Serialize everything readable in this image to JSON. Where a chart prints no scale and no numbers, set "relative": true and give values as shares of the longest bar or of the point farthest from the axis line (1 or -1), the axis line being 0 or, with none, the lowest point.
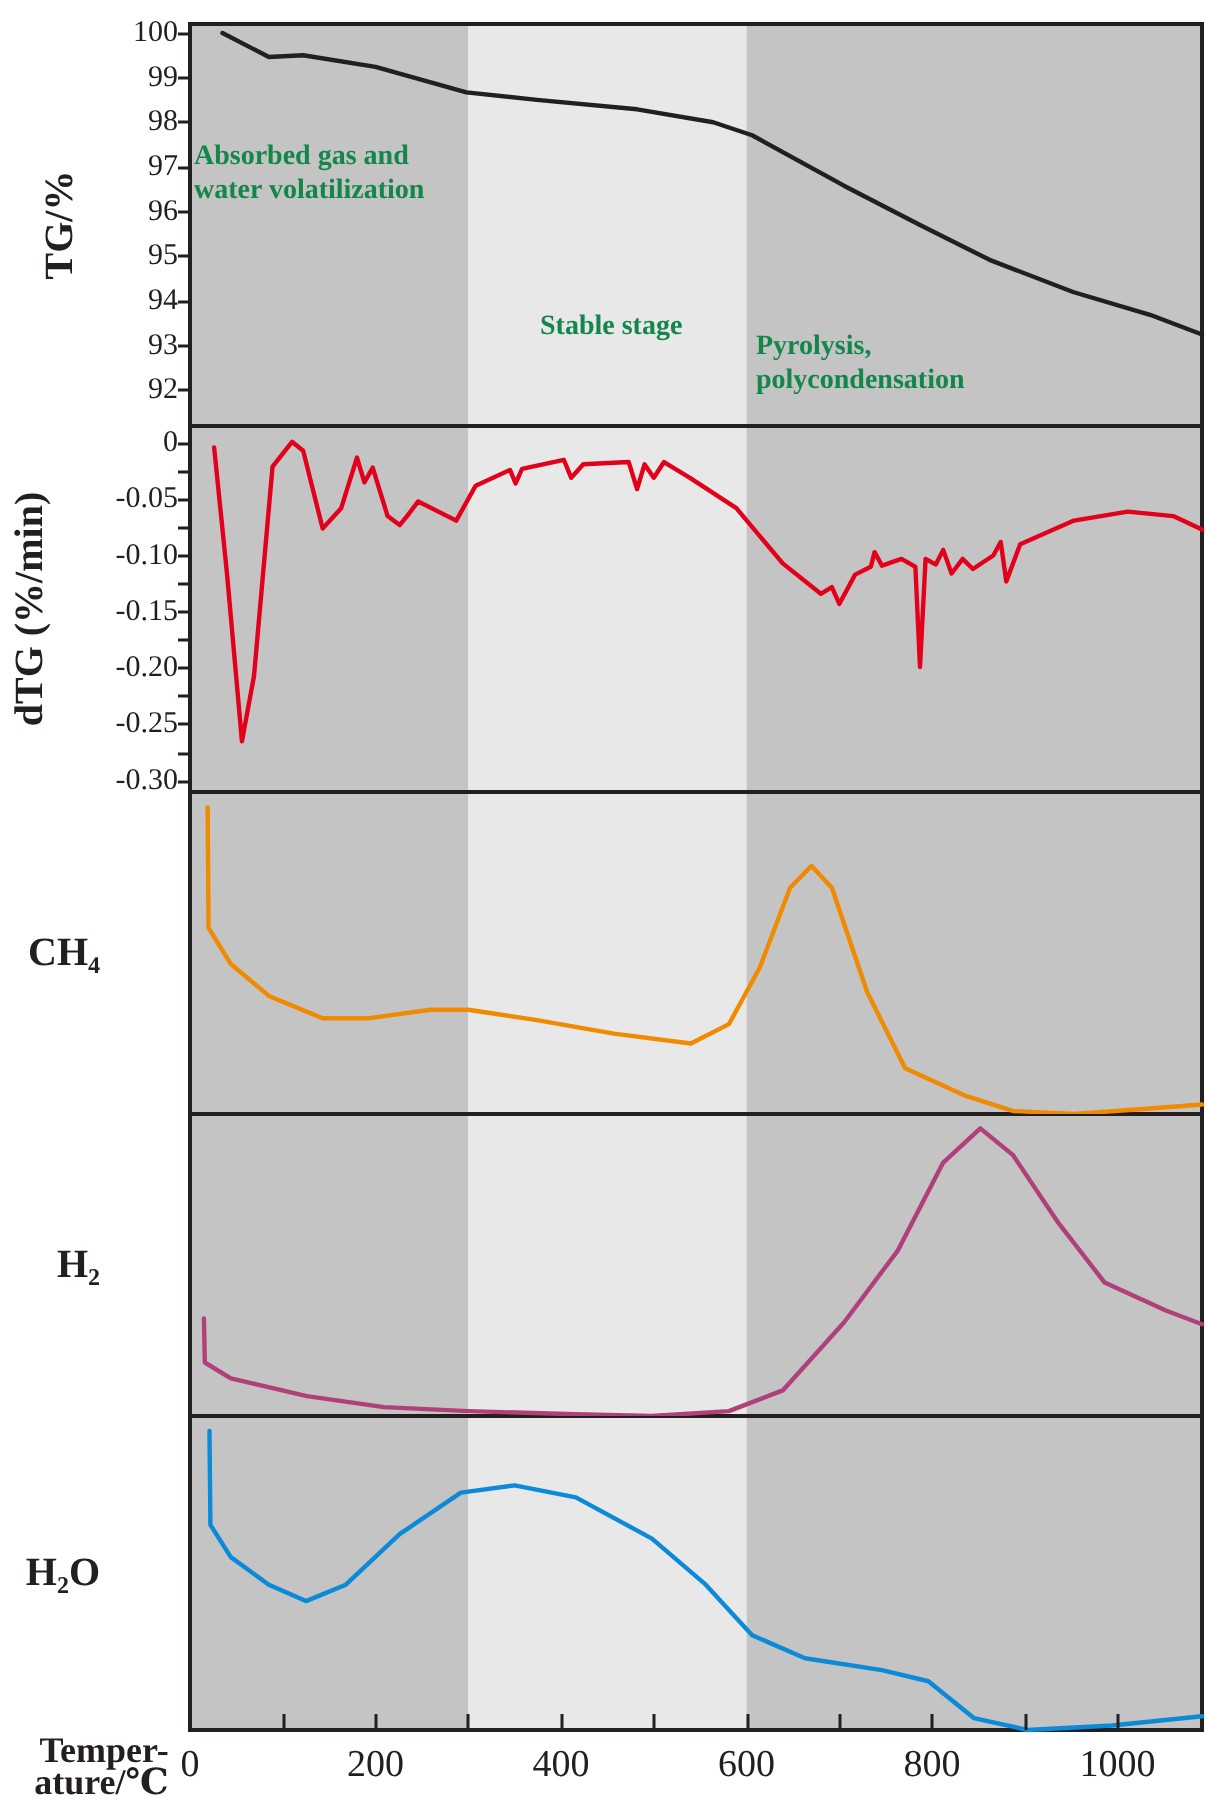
{
  "chart_data": [
    {
      "type": "line",
      "ylabel": "TG/%",
      "marker": "none",
      "tick_labels": "y",
      "xlim": [
        0,
        1091
      ],
      "ylim": [
        91.2,
        100.2
      ],
      "yticks": [
        92,
        93,
        94,
        95,
        96,
        97,
        98,
        99,
        100
      ],
      "bands": [
        {
          "axis": "x",
          "from": 0,
          "to": 300,
          "color": "#c4c4c4"
        },
        {
          "axis": "x",
          "from": 300,
          "to": 600,
          "color": "#e8e8e8"
        },
        {
          "axis": "x",
          "from": 600,
          "to": 1090,
          "color": "#c4c4c4"
        }
      ],
      "annotations": [
        "Absorbed gas and water volatilization",
        "Stable stage",
        "Pyrolysis, polycondensation"
      ],
      "series": [
        {
          "color": "#231f20",
          "x": [
            35,
            85,
            122,
            200,
            298,
            374,
            482,
            564,
            606,
            705,
            787,
            862,
            952,
            1035,
            1091
          ],
          "values": [
            100.0,
            99.46,
            99.5,
            99.24,
            98.67,
            98.5,
            98.29,
            98.0,
            97.71,
            96.58,
            95.7,
            94.92,
            94.2,
            93.69,
            93.25
          ]
        }
      ]
    },
    {
      "type": "line",
      "ylabel": "dTG (%/min)",
      "marker": "none",
      "tick_labels": "y",
      "xlim": [
        0,
        1091
      ],
      "ylim": [
        -0.31,
        0.015
      ],
      "yticks": [
        {
          "value": 0,
          "label": "0"
        },
        {
          "value": -0.025,
          "label": null
        },
        {
          "value": -0.05,
          "label": "-0.05"
        },
        {
          "value": -0.075,
          "label": null
        },
        {
          "value": -0.1,
          "label": "-0.10"
        },
        {
          "value": -0.125,
          "label": null
        },
        {
          "value": -0.15,
          "label": "-0.15"
        },
        {
          "value": -0.175,
          "label": null
        },
        {
          "value": -0.2,
          "label": "-0.20"
        },
        {
          "value": -0.225,
          "label": null
        },
        {
          "value": -0.25,
          "label": "-0.25"
        },
        {
          "value": -0.275,
          "label": null
        },
        {
          "value": -0.3,
          "label": "-0.30"
        }
      ],
      "bands": [
        {
          "axis": "x",
          "from": 0,
          "to": 300,
          "color": "#c4c4c4"
        },
        {
          "axis": "x",
          "from": 300,
          "to": 600,
          "color": "#e8e8e8"
        },
        {
          "axis": "x",
          "from": 600,
          "to": 1090,
          "color": "#c4c4c4"
        }
      ],
      "series": [
        {
          "color": "#e2001a",
          "x": [
            26,
            40,
            56,
            69,
            89,
            110,
            122,
            143,
            163,
            180,
            188,
            197,
            213,
            226,
            234,
            246,
            287,
            308,
            345,
            351,
            358,
            403,
            411,
            424,
            473,
            482,
            490,
            500,
            511,
            539,
            589,
            639,
            680,
            692,
            700,
            717,
            734,
            738,
            746,
            767,
            782,
            787,
            793,
            804,
            812,
            821,
            833,
            844,
            866,
            874,
            880,
            895,
            953,
            1011,
            1060,
            1091
          ],
          "values": [
            -0.004,
            -0.117,
            -0.265,
            -0.207,
            -0.021,
            0.001,
            -0.007,
            -0.076,
            -0.058,
            -0.013,
            -0.035,
            -0.022,
            -0.065,
            -0.073,
            -0.065,
            -0.052,
            -0.069,
            -0.038,
            -0.024,
            -0.036,
            -0.023,
            -0.015,
            -0.031,
            -0.019,
            -0.017,
            -0.041,
            -0.019,
            -0.031,
            -0.017,
            -0.031,
            -0.058,
            -0.107,
            -0.134,
            -0.128,
            -0.143,
            -0.117,
            -0.11,
            -0.097,
            -0.109,
            -0.103,
            -0.11,
            -0.199,
            -0.103,
            -0.108,
            -0.095,
            -0.116,
            -0.103,
            -0.112,
            -0.1,
            -0.088,
            -0.123,
            -0.09,
            -0.069,
            -0.061,
            -0.065,
            -0.077
          ]
        }
      ]
    },
    {
      "type": "line",
      "ylabel": "CH₄",
      "relative": true,
      "marker": "none",
      "tick_labels": false,
      "xlim": [
        0,
        1091
      ],
      "bands": [
        {
          "axis": "x",
          "from": 0,
          "to": 300,
          "color": "#c4c4c4"
        },
        {
          "axis": "x",
          "from": 300,
          "to": 600,
          "color": "#e8e8e8"
        },
        {
          "axis": "x",
          "from": 600,
          "to": 1090,
          "color": "#c4c4c4"
        }
      ],
      "series": [
        {
          "color": "#f08a00",
          "x": [
            19,
            20,
            44,
            85,
            143,
            192,
            259,
            300,
            374,
            457,
            540,
            581,
            614,
            647,
            670,
            692,
            730,
            771,
            837,
            887,
            953,
            1035,
            1091
          ],
          "values": [
            1.0,
            0.607,
            0.489,
            0.385,
            0.312,
            0.312,
            0.34,
            0.34,
            0.306,
            0.262,
            0.23,
            0.293,
            0.476,
            0.738,
            0.809,
            0.738,
            0.398,
            0.149,
            0.058,
            0.01,
            0,
            0.018,
            0.031
          ]
        }
      ]
    },
    {
      "type": "line",
      "ylabel": "H₂",
      "relative": true,
      "marker": "none",
      "tick_labels": false,
      "xlim": [
        0,
        1091
      ],
      "bands": [
        {
          "axis": "x",
          "from": 0,
          "to": 300,
          "color": "#c4c4c4"
        },
        {
          "axis": "x",
          "from": 300,
          "to": 600,
          "color": "#e8e8e8"
        },
        {
          "axis": "x",
          "from": 600,
          "to": 1090,
          "color": "#c4c4c4"
        }
      ],
      "series": [
        {
          "color": "#b0407a",
          "x": [
            15,
            16,
            44,
            126,
            209,
            300,
            416,
            498,
            581,
            639,
            705,
            763,
            812,
            852,
            887,
            936,
            986,
            1052,
            1091
          ],
          "values": [
            0.339,
            0.186,
            0.131,
            0.069,
            0.031,
            0.017,
            0.006,
            0,
            0.017,
            0.089,
            0.325,
            0.575,
            0.881,
            1.0,
            0.908,
            0.672,
            0.464,
            0.367,
            0.319
          ]
        }
      ]
    },
    {
      "type": "line",
      "ylabel": "H₂O",
      "xlabel": "Temper-\nature/℃",
      "relative": true,
      "marker": "none",
      "tick_labels": "x",
      "xlim": [
        0,
        1091
      ],
      "xticks": [
        0,
        {
          "value": 100,
          "label": null
        },
        200,
        {
          "value": 300,
          "label": null
        },
        400,
        {
          "value": 500,
          "label": null
        },
        600,
        {
          "value": 700,
          "label": null
        },
        800,
        {
          "value": 900,
          "label": null
        },
        1000
      ],
      "bands": [
        {
          "axis": "x",
          "from": 0,
          "to": 300,
          "color": "#c4c4c4"
        },
        {
          "axis": "x",
          "from": 300,
          "to": 600,
          "color": "#e8e8e8"
        },
        {
          "axis": "x",
          "from": 600,
          "to": 1090,
          "color": "#c4c4c4"
        }
      ],
      "series": [
        {
          "color": "#0a8ad8",
          "x": [
            21,
            22,
            44,
            85,
            125,
            168,
            226,
            292,
            350,
            416,
            498,
            556,
            606,
            663,
            746,
            796,
            845,
            903,
            994,
            1091
          ],
          "values": [
            1.0,
            0.686,
            0.578,
            0.486,
            0.431,
            0.486,
            0.655,
            0.794,
            0.818,
            0.778,
            0.64,
            0.486,
            0.317,
            0.24,
            0.2,
            0.163,
            0.04,
            0,
            0.015,
            0.046
          ]
        }
      ]
    }
  ]
}
